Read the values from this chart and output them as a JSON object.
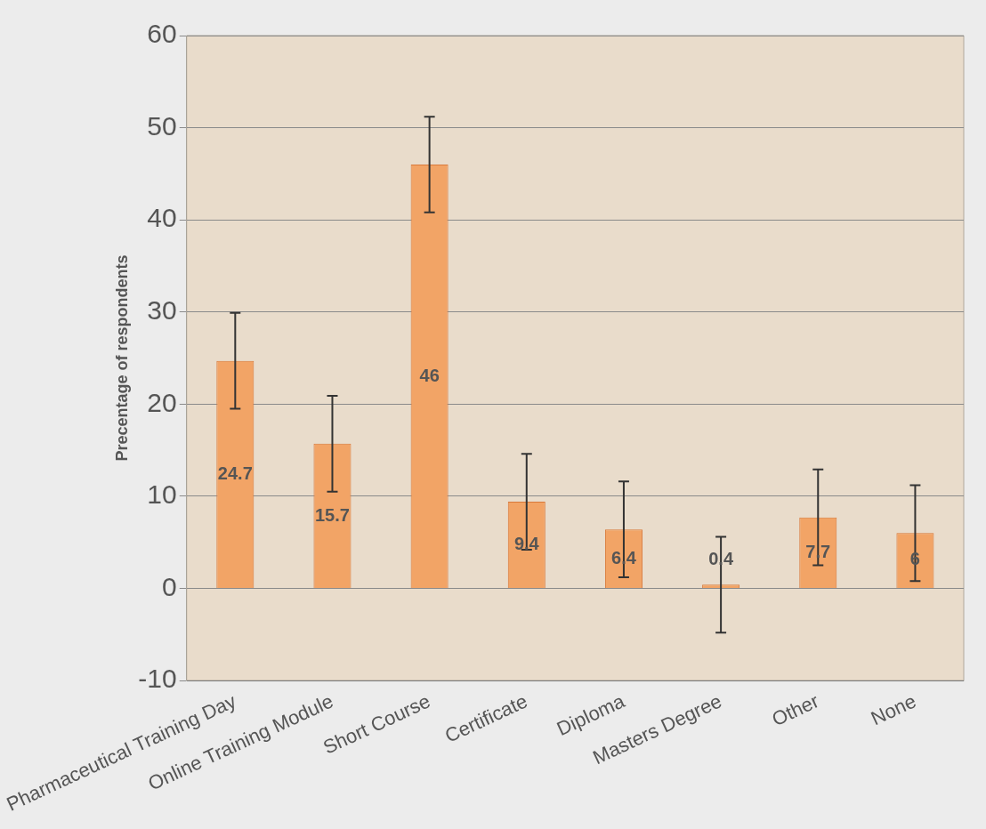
{
  "chart_data": {
    "type": "bar",
    "ylabel": "Precentage of respondents",
    "categories": [
      "Pharmaceutical Training Day",
      "Online Training Module",
      "Short Course",
      "Certificate",
      "Diploma",
      "Masters Degree",
      "Other",
      "None"
    ],
    "values": [
      24.7,
      15.7,
      46,
      9.4,
      6.4,
      0.4,
      7.7,
      6
    ],
    "errors": [
      5.2,
      5.2,
      5.2,
      5.2,
      5.2,
      5.2,
      5.2,
      5.2
    ],
    "color": "#f2a466",
    "ylim": [
      -10,
      60
    ],
    "yticks": [
      -10,
      0,
      10,
      20,
      30,
      40,
      50,
      60
    ],
    "grid": "y",
    "legend": false,
    "data_labels": true
  }
}
